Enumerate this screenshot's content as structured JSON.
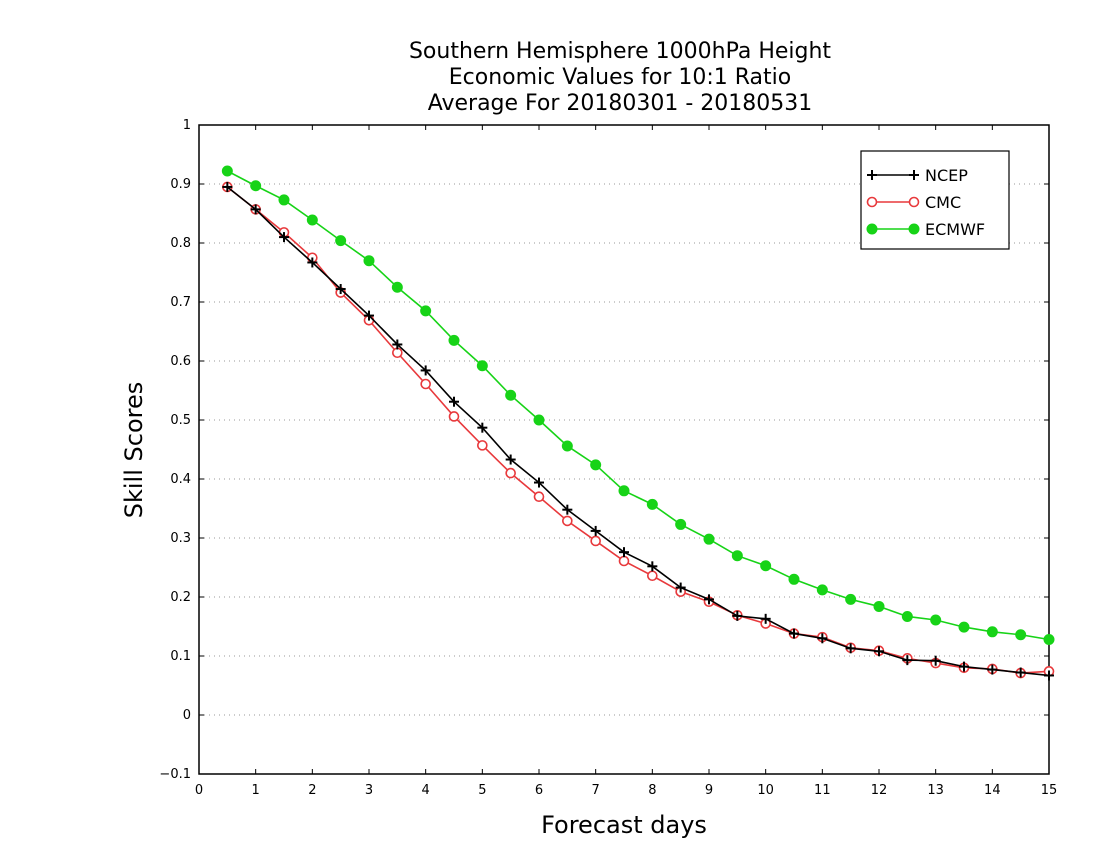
{
  "chart_data": {
    "type": "line",
    "title_lines": [
      "Southern Hemisphere 1000hPa Height",
      "Economic Values for 10:1 Ratio",
      "Average For 20180301 - 20180531"
    ],
    "xlabel": "Forecast days",
    "ylabel": "Skill Scores",
    "xlim": [
      0,
      15
    ],
    "ylim": [
      -0.1,
      1
    ],
    "x_ticks": [
      "0",
      "1",
      "2",
      "3",
      "4",
      "5",
      "6",
      "7",
      "8",
      "9",
      "10",
      "11",
      "12",
      "13",
      "14",
      "15"
    ],
    "y_ticks": [
      "−0.1",
      "0",
      "0.1",
      "0.2",
      "0.3",
      "0.4",
      "0.5",
      "0.6",
      "0.7",
      "0.8",
      "0.9",
      "1"
    ],
    "grid": "horizontal dotted",
    "legend_position": "top-right",
    "x": [
      0.5,
      1,
      1.5,
      2,
      2.5,
      3,
      3.5,
      4,
      4.5,
      5,
      5.5,
      6,
      6.5,
      7,
      7.5,
      8,
      8.5,
      9,
      9.5,
      10,
      10.5,
      11,
      11.5,
      12,
      12.5,
      13,
      13.5,
      14,
      14.5,
      15
    ],
    "series": [
      {
        "name": "NCEP",
        "color": "#000000",
        "marker": "plus",
        "values": [
          0.895,
          0.857,
          0.81,
          0.767,
          0.722,
          0.677,
          0.628,
          0.584,
          0.531,
          0.487,
          0.433,
          0.394,
          0.348,
          0.312,
          0.276,
          0.252,
          0.216,
          0.196,
          0.168,
          0.163,
          0.138,
          0.13,
          0.113,
          0.108,
          0.093,
          0.092,
          0.082,
          0.077,
          0.072,
          0.067
        ]
      },
      {
        "name": "CMC",
        "color": "#e8393c",
        "marker": "open-circle",
        "values": [
          0.895,
          0.857,
          0.818,
          0.775,
          0.716,
          0.669,
          0.614,
          0.561,
          0.506,
          0.457,
          0.41,
          0.37,
          0.329,
          0.295,
          0.261,
          0.236,
          0.209,
          0.192,
          0.169,
          0.155,
          0.138,
          0.132,
          0.114,
          0.109,
          0.096,
          0.088,
          0.08,
          0.078,
          0.071,
          0.074
        ]
      },
      {
        "name": "ECMWF",
        "color": "#17d317",
        "marker": "filled-circle",
        "values": [
          0.922,
          0.897,
          0.873,
          0.839,
          0.804,
          0.77,
          0.725,
          0.685,
          0.635,
          0.592,
          0.542,
          0.5,
          0.456,
          0.424,
          0.38,
          0.357,
          0.323,
          0.298,
          0.27,
          0.253,
          0.23,
          0.212,
          0.196,
          0.184,
          0.167,
          0.161,
          0.149,
          0.141,
          0.136,
          0.128
        ]
      }
    ]
  }
}
